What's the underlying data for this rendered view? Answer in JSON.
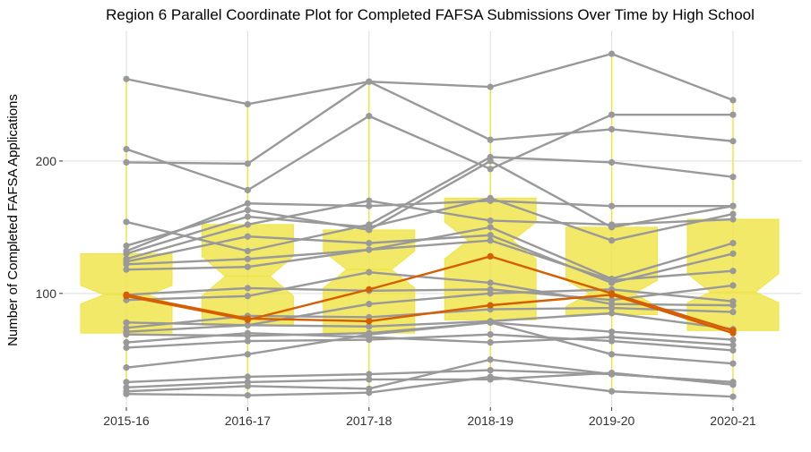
{
  "chart_data": {
    "type": "line",
    "title": "Region 6 Parallel Coordinate Plot for Completed FAFSA Submissions Over Time by High School",
    "xlabel": "",
    "ylabel": "Number of Completed FAFSA Applications",
    "categories": [
      "2015-16",
      "2016-17",
      "2017-18",
      "2018-19",
      "2019-20",
      "2020-21"
    ],
    "y_ticks": [
      "100",
      "200"
    ],
    "ylim": [
      14,
      298
    ],
    "grid": true,
    "colors": {
      "background_lines": "#999999",
      "highlight_lines": "#d55e00",
      "boxplot_fill": "#f0e442",
      "grid": "#dddddd"
    },
    "series": [
      {
        "values": [
          262,
          243,
          260,
          256,
          281,
          246
        ]
      },
      {
        "values": [
          199,
          198,
          260,
          216,
          224,
          215
        ]
      },
      {
        "values": [
          209,
          178,
          234,
          194,
          235,
          235
        ]
      },
      {
        "values": [
          154,
          132,
          152,
          203,
          199,
          188
        ]
      },
      {
        "values": [
          136,
          163,
          148,
          200,
          150,
          166
        ]
      },
      {
        "values": [
          132,
          168,
          166,
          170,
          166,
          166
        ]
      },
      {
        "values": [
          130,
          158,
          150,
          172,
          140,
          160
        ]
      },
      {
        "values": [
          126,
          152,
          170,
          155,
          152,
          156
        ]
      },
      {
        "values": [
          124,
          143,
          138,
          144,
          108,
          130
        ]
      },
      {
        "values": [
          122,
          126,
          133,
          150,
          111,
          138
        ]
      },
      {
        "values": [
          118,
          120,
          133,
          140,
          110,
          117
        ]
      },
      {
        "values": [
          99,
          104,
          102,
          103,
          95,
          106
        ]
      },
      {
        "values": [
          95,
          98,
          116,
          108,
          92,
          91
        ]
      },
      {
        "values": [
          78,
          76,
          92,
          100,
          103,
          94
        ]
      },
      {
        "values": [
          74,
          83,
          82,
          88,
          89,
          86
        ]
      },
      {
        "values": [
          71,
          76,
          75,
          79,
          85,
          73
        ]
      },
      {
        "values": [
          69,
          68,
          70,
          78,
          71,
          65
        ]
      },
      {
        "values": [
          63,
          70,
          67,
          63,
          67,
          61
        ]
      },
      {
        "values": [
          59,
          64,
          65,
          69,
          64,
          57
        ]
      },
      {
        "values": [
          44,
          54,
          69,
          78,
          54,
          47
        ]
      },
      {
        "values": [
          33,
          37,
          39,
          42,
          39,
          33
        ]
      },
      {
        "values": [
          29,
          33,
          35,
          35,
          40,
          31
        ]
      },
      {
        "values": [
          26,
          30,
          28,
          50,
          39,
          33
        ]
      },
      {
        "values": [
          24,
          23,
          25,
          37,
          26,
          22
        ]
      },
      {
        "values": [
          98,
          80,
          103,
          128,
          100,
          72
        ],
        "highlight": true
      },
      {
        "values": [
          99,
          81,
          79,
          91,
          99,
          70
        ],
        "highlight": true
      }
    ],
    "boxplots": [
      {
        "min": 24,
        "q1": 70,
        "median": 99,
        "q3": 130,
        "max": 262,
        "notch": [
          92,
          106
        ]
      },
      {
        "min": 23,
        "q1": 76,
        "median": 113,
        "q3": 152,
        "max": 243,
        "notch": [
          98,
          128
        ]
      },
      {
        "min": 25,
        "q1": 70,
        "median": 118,
        "q3": 148,
        "max": 260,
        "notch": [
          104,
          132
        ]
      },
      {
        "min": 35,
        "q1": 80,
        "median": 140,
        "q3": 172,
        "max": 256,
        "notch": [
          126,
          154
        ]
      },
      {
        "min": 26,
        "q1": 84,
        "median": 100,
        "q3": 150,
        "max": 281,
        "notch": [
          90,
          110
        ]
      },
      {
        "min": 22,
        "q1": 72,
        "median": 101,
        "q3": 156,
        "max": 246,
        "notch": [
          93,
          115
        ]
      }
    ]
  }
}
